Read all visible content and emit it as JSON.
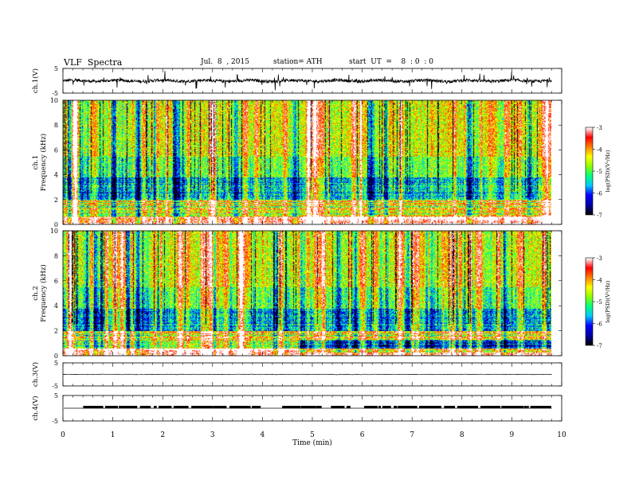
{
  "header": {
    "title": "VLF  Spectra",
    "date": "Jul.  8  , 2015",
    "station": "station= ATH",
    "start": "start  UT  =    8  : 0  : 0"
  },
  "colors": {
    "spectrum": [
      "#000000",
      "#0000aa",
      "#0000ff",
      "#00c8ff",
      "#00ff80",
      "#8cff00",
      "#ffff00",
      "#ff8000",
      "#ff0000",
      "#ffffff"
    ],
    "trace": "#000000"
  },
  "chart_data": [
    {
      "type": "line",
      "name": "ch1-waveform",
      "ylabel": "ch.1(V)",
      "ylim": [
        -5,
        5
      ],
      "yticks": [
        "5",
        "-5"
      ],
      "xlim": [
        0,
        10
      ],
      "trace_level_v": 0
    },
    {
      "type": "heatmap",
      "name": "ch1-spectrogram",
      "ylabel": "ch.1\nFrequency  (kHz)",
      "ylim": [
        0,
        10
      ],
      "yticks": [
        "0",
        "2",
        "4",
        "6",
        "8",
        "10"
      ],
      "xlim": [
        0,
        10
      ],
      "data_end_min": 9.8,
      "colorbar": {
        "label": "log(PSD)(V²/Hz)",
        "range": [
          -7,
          -3
        ],
        "ticks": [
          "-3",
          "-4",
          "-5",
          "-6",
          "-7"
        ]
      }
    },
    {
      "type": "heatmap",
      "name": "ch2-spectrogram",
      "ylabel": "ch.2\nFrequency  (kHz)",
      "ylim": [
        0,
        10
      ],
      "yticks": [
        "0",
        "2",
        "4",
        "6",
        "8",
        "10"
      ],
      "xlim": [
        0,
        10
      ],
      "data_end_min": 9.8,
      "colorbar": {
        "label": "log(PSD)(V²/Hz)",
        "range": [
          -7,
          -3
        ],
        "ticks": [
          "-3",
          "-4",
          "-5",
          "-6",
          "-7"
        ]
      }
    },
    {
      "type": "line",
      "name": "ch3-waveform",
      "ylabel": "ch.3(V)",
      "ylim": [
        -5,
        5
      ],
      "yticks": [
        "5",
        "-5"
      ],
      "xlim": [
        0,
        10
      ],
      "trace_level_v": 0
    },
    {
      "type": "line",
      "name": "ch4-waveform",
      "ylabel": "ch.4(V)",
      "ylim": [
        -5,
        5
      ],
      "yticks": [
        "5",
        "-5"
      ],
      "xlim": [
        0,
        10
      ],
      "trace_level_v": 0
    }
  ],
  "xaxis": {
    "label": "Time  (min)",
    "ticks": [
      "0",
      "1",
      "2",
      "3",
      "4",
      "5",
      "6",
      "7",
      "8",
      "9",
      "10"
    ]
  }
}
